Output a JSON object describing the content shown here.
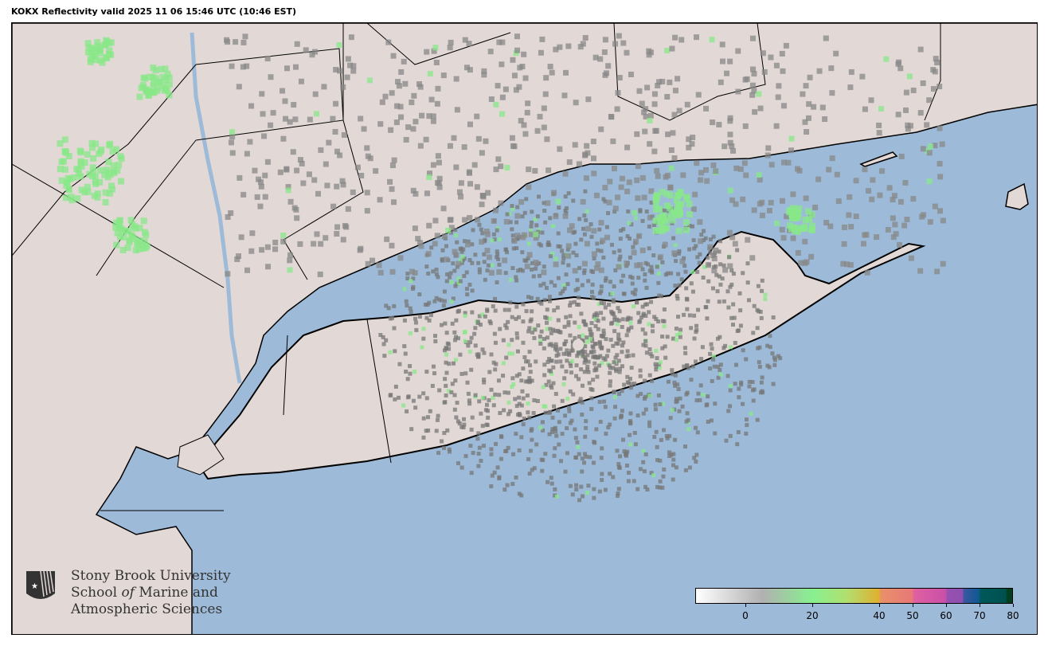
{
  "title": "KOKX Reflectivity valid 2025 11 06 15:46 UTC (10:46 EST)",
  "logo": {
    "line1": "Stony Brook University",
    "line2a": "School ",
    "line2b": "of",
    "line2c": " Marine and",
    "line3": "Atmospheric Sciences"
  },
  "colors": {
    "water": "#9dbbd8",
    "land": "#e2d8d5",
    "border": "#000000"
  },
  "colorbar": {
    "min": -15,
    "max": 80,
    "ticks": [
      {
        "value": 0,
        "label": "0"
      },
      {
        "value": 20,
        "label": "20"
      },
      {
        "value": 40,
        "label": "40"
      },
      {
        "value": 50,
        "label": "50"
      },
      {
        "value": 60,
        "label": "60"
      },
      {
        "value": 70,
        "label": "70"
      },
      {
        "value": 80,
        "label": "80"
      }
    ],
    "stops": [
      {
        "value": -15,
        "color": "#ffffff"
      },
      {
        "value": 5,
        "color": "#b0b0b0"
      },
      {
        "value": 20,
        "color": "#88f090"
      },
      {
        "value": 30,
        "color": "#b0e070"
      },
      {
        "value": 40,
        "color": "#e0b030"
      },
      {
        "value": 40.5,
        "color": "#e89068"
      },
      {
        "value": 50,
        "color": "#e87878"
      },
      {
        "value": 50.5,
        "color": "#e060a0"
      },
      {
        "value": 60,
        "color": "#c850a8"
      },
      {
        "value": 60.5,
        "color": "#9850b0"
      },
      {
        "value": 65,
        "color": "#9050b0"
      },
      {
        "value": 65.5,
        "color": "#3858a0"
      },
      {
        "value": 70,
        "color": "#105890"
      },
      {
        "value": 70.5,
        "color": "#005858"
      },
      {
        "value": 78,
        "color": "#005050"
      },
      {
        "value": 78.5,
        "color": "#004020"
      },
      {
        "value": 80,
        "color": "#004020"
      }
    ]
  }
}
